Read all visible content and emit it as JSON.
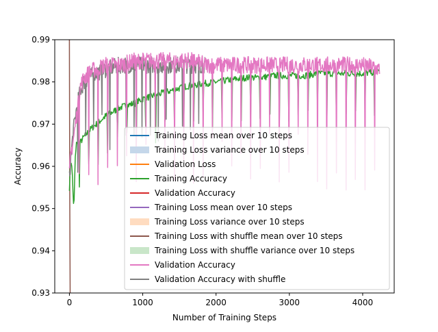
{
  "chart_data": {
    "type": "line",
    "xlabel": "Number of Training Steps",
    "ylabel": "Accuracy",
    "xlim": [
      -200,
      4430
    ],
    "ylim": [
      0.93,
      0.99
    ],
    "x_ticks": [
      0,
      1000,
      2000,
      3000,
      4000
    ],
    "x_tick_labels": [
      "0",
      "1000",
      "2000",
      "3000",
      "4000"
    ],
    "y_ticks": [
      0.93,
      0.94,
      0.95,
      0.96,
      0.97,
      0.98,
      0.99
    ],
    "y_tick_labels": [
      "0.93",
      "0.94",
      "0.95",
      "0.96",
      "0.97",
      "0.98",
      "0.99"
    ],
    "grid": false,
    "legend_position": "lower-right",
    "colors": {
      "blue": "#1f77b4",
      "orange": "#ff7f0e",
      "green": "#2ca02c",
      "red": "#d62728",
      "purple": "#9467bd",
      "brown": "#8c564b",
      "pink": "#e377c2",
      "gray": "#7f7f7f",
      "blue_fill": "#c5d7ea",
      "orange_fill": "#ffdcc0",
      "green_fill": "#c9e6c9"
    },
    "legend": [
      {
        "label": "Training Loss mean over 10 steps",
        "kind": "line",
        "color": "#1f77b4"
      },
      {
        "label": "Training Loss variance over 10 steps",
        "kind": "patch",
        "color": "#c5d7ea"
      },
      {
        "label": "Validation Loss",
        "kind": "line",
        "color": "#ff7f0e"
      },
      {
        "label": "Training Accuracy",
        "kind": "line",
        "color": "#2ca02c"
      },
      {
        "label": "Validation Accuracy",
        "kind": "line",
        "color": "#d62728"
      },
      {
        "label": "Training Loss mean over 10 steps",
        "kind": "line",
        "color": "#9467bd"
      },
      {
        "label": "Training Loss variance over 10 steps",
        "kind": "patch",
        "color": "#ffdcc0"
      },
      {
        "label": "Training Loss with shuffle mean over 10 steps",
        "kind": "line",
        "color": "#8c564b"
      },
      {
        "label": "Training Loss with shuffle variance over 10 steps",
        "kind": "patch",
        "color": "#c9e6c9"
      },
      {
        "label": "Validation Accuracy",
        "kind": "line",
        "color": "#e377c2"
      },
      {
        "label": "Validation Accuracy with shuffle",
        "kind": "line",
        "color": "#7f7f7f"
      }
    ],
    "series": [
      {
        "name": "Training Accuracy",
        "color": "#2ca02c",
        "x": [
          0,
          20,
          40,
          60,
          80,
          100,
          130,
          160,
          200,
          250,
          300,
          400,
          500,
          600,
          700,
          800,
          900,
          1000,
          1200,
          1400,
          1600,
          1800,
          2000,
          2200,
          2400,
          2600,
          2800,
          3000,
          3200,
          3400,
          3600,
          3800,
          4000,
          4230
        ],
        "y": [
          0.955,
          0.962,
          0.958,
          0.949,
          0.962,
          0.966,
          0.965,
          0.966,
          0.967,
          0.968,
          0.969,
          0.9705,
          0.972,
          0.973,
          0.974,
          0.9745,
          0.975,
          0.976,
          0.977,
          0.978,
          0.979,
          0.9795,
          0.98,
          0.9805,
          0.981,
          0.981,
          0.9815,
          0.9815,
          0.9815,
          0.982,
          0.982,
          0.982,
          0.982,
          0.9825
        ]
      },
      {
        "name": "Validation Accuracy",
        "color": "#e377c2",
        "x": [
          0,
          20,
          50,
          100,
          150,
          200,
          260,
          350,
          500,
          700,
          900,
          1100,
          1300,
          1500,
          1700,
          1850,
          2000,
          2500,
          3000,
          3500,
          4000,
          4230
        ],
        "y": [
          0.958,
          0.963,
          0.966,
          0.972,
          0.979,
          0.981,
          0.982,
          0.983,
          0.984,
          0.984,
          0.985,
          0.985,
          0.985,
          0.985,
          0.985,
          0.984,
          0.984,
          0.984,
          0.984,
          0.984,
          0.984,
          0.983
        ]
      },
      {
        "name": "Validation Accuracy with shuffle",
        "color": "#7f7f7f",
        "x": [
          0,
          20,
          50,
          100,
          150,
          200,
          260,
          350,
          500,
          700,
          900,
          1100,
          1300,
          1500,
          1700,
          1850
        ],
        "y": [
          0.957,
          0.962,
          0.968,
          0.974,
          0.978,
          0.98,
          0.981,
          0.982,
          0.983,
          0.984,
          0.984,
          0.984,
          0.984,
          0.984,
          0.984,
          0.984
        ]
      },
      {
        "name": "Training Loss with shuffle mean over 10 steps",
        "color": "#8c564b",
        "x": [
          0,
          5,
          10
        ],
        "y": [
          0.99,
          0.95,
          0.93
        ]
      }
    ]
  }
}
